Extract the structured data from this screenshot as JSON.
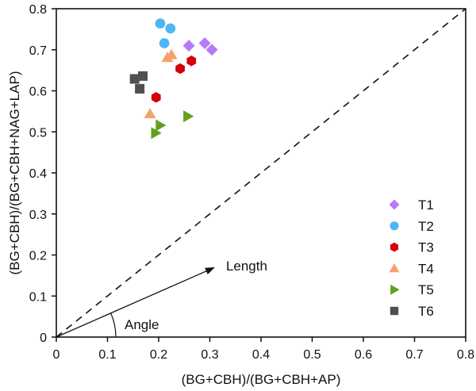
{
  "chart_data": {
    "type": "scatter",
    "title": "",
    "xlabel": "(BG+CBH)/(BG+CBH+AP)",
    "ylabel": "(BG+CBH)/(BG+CBH+NAG+LAP)",
    "xlim": [
      0,
      0.8
    ],
    "ylim": [
      0,
      0.8
    ],
    "xticks": [
      "0",
      "0.1",
      "0.2",
      "0.3",
      "0.4",
      "0.5",
      "0.6",
      "0.7",
      "0.8"
    ],
    "yticks": [
      "0",
      "0.1",
      "0.2",
      "0.3",
      "0.4",
      "0.5",
      "0.6",
      "0.7",
      "0.8"
    ],
    "grid": false,
    "legend_position": "bottom-right",
    "reference_line": {
      "type": "1:1",
      "style": "dashed"
    },
    "annotations": {
      "vector_label": "Length",
      "angle_label": "Angle",
      "vector_end": [
        0.31,
        0.17
      ]
    },
    "series": [
      {
        "name": "T1",
        "marker": "diamond",
        "color": "#b57cf5",
        "points": [
          [
            0.259,
            0.71
          ],
          [
            0.29,
            0.716
          ],
          [
            0.304,
            0.7
          ]
        ]
      },
      {
        "name": "T2",
        "marker": "circle",
        "color": "#4fb6f5",
        "points": [
          [
            0.203,
            0.764
          ],
          [
            0.223,
            0.752
          ],
          [
            0.211,
            0.716
          ]
        ]
      },
      {
        "name": "T3",
        "marker": "hexagon",
        "color": "#d2000b",
        "points": [
          [
            0.264,
            0.673
          ],
          [
            0.242,
            0.654
          ],
          [
            0.195,
            0.584
          ]
        ]
      },
      {
        "name": "T4",
        "marker": "triangle-up",
        "color": "#f3a46d",
        "points": [
          [
            0.225,
            0.688
          ],
          [
            0.217,
            0.681
          ],
          [
            0.183,
            0.544
          ]
        ]
      },
      {
        "name": "T5",
        "marker": "triangle-right",
        "color": "#62a01e",
        "points": [
          [
            0.257,
            0.538
          ],
          [
            0.203,
            0.516
          ],
          [
            0.194,
            0.497
          ]
        ]
      },
      {
        "name": "T6",
        "marker": "square",
        "color": "#505050",
        "points": [
          [
            0.153,
            0.629
          ],
          [
            0.169,
            0.636
          ],
          [
            0.163,
            0.605
          ]
        ]
      }
    ]
  }
}
